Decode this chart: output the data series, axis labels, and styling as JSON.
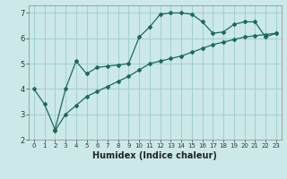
{
  "xlabel": "Humidex (Indice chaleur)",
  "bg_color": "#cce8e8",
  "grid_color": "#99cccc",
  "line_color": "#1a6b5a",
  "x_line1": [
    0,
    1,
    2,
    3,
    4,
    5,
    6,
    7,
    8,
    9,
    10,
    11,
    12,
    13,
    14,
    15,
    16,
    17,
    18,
    19,
    20,
    21,
    22,
    23
  ],
  "y_line1": [
    4.0,
    3.4,
    2.4,
    4.0,
    5.1,
    4.6,
    4.85,
    4.9,
    4.95,
    5.0,
    6.05,
    6.45,
    6.95,
    7.0,
    7.0,
    6.95,
    6.65,
    6.2,
    6.25,
    6.55,
    6.65,
    6.65,
    6.05,
    6.2
  ],
  "x_line2": [
    2,
    3,
    4,
    5,
    6,
    7,
    8,
    9,
    10,
    11,
    12,
    13,
    14,
    15,
    16,
    17,
    18,
    19,
    20,
    21,
    22,
    23
  ],
  "y_line2": [
    2.35,
    3.0,
    3.35,
    3.7,
    3.9,
    4.1,
    4.3,
    4.5,
    4.75,
    5.0,
    5.1,
    5.2,
    5.3,
    5.45,
    5.6,
    5.75,
    5.85,
    5.95,
    6.05,
    6.1,
    6.15,
    6.2
  ],
  "xlim": [
    -0.5,
    23.5
  ],
  "ylim": [
    2.0,
    7.3
  ],
  "yticks": [
    2,
    3,
    4,
    5,
    6,
    7
  ],
  "xticks": [
    0,
    1,
    2,
    3,
    4,
    5,
    6,
    7,
    8,
    9,
    10,
    11,
    12,
    13,
    14,
    15,
    16,
    17,
    18,
    19,
    20,
    21,
    22,
    23
  ],
  "marker_size": 2.0,
  "line_width": 0.9,
  "xlabel_fontsize": 7,
  "tick_fontsize_x": 5,
  "tick_fontsize_y": 6
}
